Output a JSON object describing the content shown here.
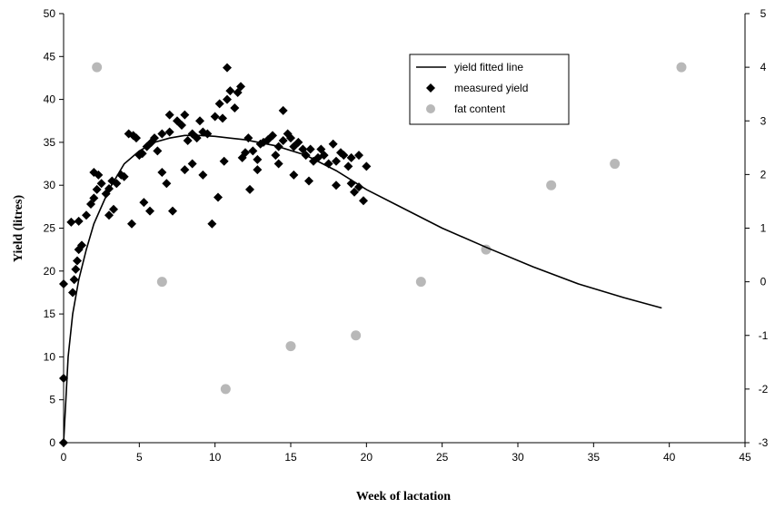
{
  "chart_data": {
    "type": "scatter",
    "xlabel": "Week of lactation",
    "ylabel": "Yield (litres)",
    "xlim": [
      0,
      45
    ],
    "ylim": [
      0,
      50
    ],
    "y2lim": [
      -3,
      5
    ],
    "xticks": [
      "0",
      "5",
      "10",
      "15",
      "20",
      "25",
      "30",
      "35",
      "40",
      "45"
    ],
    "yticks": [
      "0",
      "5",
      "10",
      "15",
      "20",
      "25",
      "30",
      "35",
      "40",
      "45",
      "50"
    ],
    "y2ticks": [
      "-3",
      "-2",
      "-1",
      "0",
      "1",
      "2",
      "3",
      "4",
      "5"
    ],
    "grid": false,
    "legend_position": "top-right",
    "series": [
      {
        "name": "yield fitted line",
        "kind": "line",
        "color": "#000000",
        "points": [
          [
            0,
            0
          ],
          [
            0.3,
            10
          ],
          [
            0.6,
            15
          ],
          [
            1,
            19
          ],
          [
            1.5,
            22.5
          ],
          [
            2,
            25.5
          ],
          [
            3,
            29.5
          ],
          [
            4,
            32.5
          ],
          [
            5,
            34
          ],
          [
            6,
            35
          ],
          [
            7,
            35.5
          ],
          [
            8,
            35.8
          ],
          [
            9,
            35.8
          ],
          [
            10,
            35.7
          ],
          [
            12,
            35.3
          ],
          [
            14,
            34.6
          ],
          [
            16,
            33.5
          ],
          [
            18,
            31.7
          ],
          [
            20,
            29.5
          ],
          [
            22,
            27.7
          ],
          [
            25,
            25
          ],
          [
            28,
            22.7
          ],
          [
            31,
            20.5
          ],
          [
            34,
            18.5
          ],
          [
            37,
            16.9
          ],
          [
            39.5,
            15.7
          ]
        ]
      },
      {
        "name": "measured yield",
        "kind": "scatter",
        "marker": "diamond",
        "color": "#000000",
        "points": [
          [
            0,
            0
          ],
          [
            0,
            7.5
          ],
          [
            0,
            18.5
          ],
          [
            0.6,
            17.5
          ],
          [
            0.7,
            19
          ],
          [
            0.8,
            20.2
          ],
          [
            0.9,
            21.2
          ],
          [
            1,
            22.5
          ],
          [
            1.2,
            23
          ],
          [
            0.5,
            25.7
          ],
          [
            1,
            25.8
          ],
          [
            1.5,
            26.5
          ],
          [
            1.8,
            27.8
          ],
          [
            2,
            28.5
          ],
          [
            2.2,
            29.5
          ],
          [
            2.5,
            30.2
          ],
          [
            2,
            31.5
          ],
          [
            2.3,
            31.2
          ],
          [
            2.8,
            29
          ],
          [
            3,
            29.6
          ],
          [
            3.2,
            30.5
          ],
          [
            3.5,
            30.2
          ],
          [
            3.8,
            31.2
          ],
          [
            4,
            31
          ],
          [
            3,
            26.5
          ],
          [
            3.3,
            27.2
          ],
          [
            4.5,
            25.5
          ],
          [
            4.3,
            36
          ],
          [
            4.6,
            35.8
          ],
          [
            4.8,
            35.5
          ],
          [
            5,
            33.5
          ],
          [
            5.2,
            33.7
          ],
          [
            5.5,
            34.5
          ],
          [
            5.8,
            35
          ],
          [
            6,
            35.5
          ],
          [
            6.2,
            34
          ],
          [
            5.3,
            28
          ],
          [
            5.7,
            27
          ],
          [
            6.5,
            31.5
          ],
          [
            6.8,
            30.2
          ],
          [
            7.2,
            27
          ],
          [
            6.5,
            36
          ],
          [
            7,
            36.2
          ],
          [
            7,
            38.2
          ],
          [
            7.5,
            37.5
          ],
          [
            7.8,
            37
          ],
          [
            8,
            38.2
          ],
          [
            8.2,
            35.2
          ],
          [
            8.5,
            36
          ],
          [
            8.8,
            35.5
          ],
          [
            9,
            37.5
          ],
          [
            9.2,
            36.2
          ],
          [
            9.5,
            36
          ],
          [
            8,
            31.8
          ],
          [
            8.5,
            32.5
          ],
          [
            9.2,
            31.2
          ],
          [
            9.8,
            25.5
          ],
          [
            10.2,
            28.6
          ],
          [
            10,
            38
          ],
          [
            10.3,
            39.5
          ],
          [
            10.5,
            37.8
          ],
          [
            10.8,
            40
          ],
          [
            11,
            41
          ],
          [
            11.3,
            39
          ],
          [
            11.5,
            40.8
          ],
          [
            11.7,
            41.5
          ],
          [
            10.8,
            43.7
          ],
          [
            10.6,
            32.8
          ],
          [
            11.8,
            33.2
          ],
          [
            12,
            33.8
          ],
          [
            12.2,
            35.5
          ],
          [
            12.5,
            34
          ],
          [
            12.8,
            33
          ],
          [
            13,
            34.8
          ],
          [
            13.2,
            35
          ],
          [
            13.5,
            35.3
          ],
          [
            13.8,
            35.8
          ],
          [
            14,
            33.5
          ],
          [
            14.2,
            32.5
          ],
          [
            12.3,
            29.5
          ],
          [
            12.8,
            31.8
          ],
          [
            14.5,
            35.2
          ],
          [
            14.8,
            36
          ],
          [
            14.5,
            38.7
          ],
          [
            15,
            35.5
          ],
          [
            15.2,
            34.5
          ],
          [
            15.5,
            35
          ],
          [
            15.8,
            34.2
          ],
          [
            16,
            33.5
          ],
          [
            16.3,
            34.2
          ],
          [
            16.5,
            32.8
          ],
          [
            16.8,
            33.2
          ],
          [
            17,
            34.2
          ],
          [
            17.2,
            33.5
          ],
          [
            17.5,
            32.5
          ],
          [
            17.8,
            34.8
          ],
          [
            18,
            32.8
          ],
          [
            18.3,
            33.8
          ],
          [
            18.5,
            33.5
          ],
          [
            18.8,
            32.2
          ],
          [
            19,
            33.2
          ],
          [
            15.2,
            31.2
          ],
          [
            16.2,
            30.5
          ],
          [
            18,
            30
          ],
          [
            19,
            30.2
          ],
          [
            19.2,
            29.2
          ],
          [
            19.5,
            29.8
          ],
          [
            19.8,
            28.2
          ],
          [
            19.5,
            33.5
          ],
          [
            20,
            32.2
          ],
          [
            14.2,
            34.5
          ]
        ]
      },
      {
        "name": "fat content",
        "kind": "scatter",
        "marker": "circle",
        "color": "#b8b8b8",
        "axis": "right",
        "points": [
          [
            2.2,
            4
          ],
          [
            6.5,
            0
          ],
          [
            10.7,
            -2
          ],
          [
            15,
            -1.2
          ],
          [
            19.3,
            -1
          ],
          [
            23.6,
            0
          ],
          [
            27.9,
            0.6
          ],
          [
            32.2,
            1.8
          ],
          [
            36.4,
            2.2
          ],
          [
            40.8,
            4
          ]
        ]
      }
    ]
  }
}
